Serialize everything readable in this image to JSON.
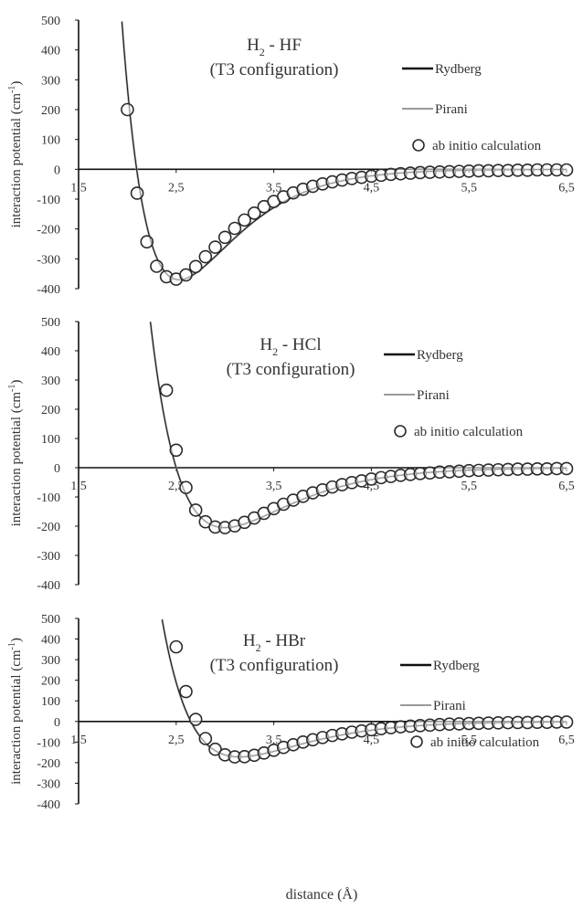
{
  "chart_data": [
    {
      "type": "line",
      "title_line1": "H",
      "title_sub": "2",
      "title_line1_rest": " - HF",
      "title_line2": "(T3 configuration)",
      "ylabel": "interaction potential (cm",
      "ylabel_sup": "-1",
      "ylabel_end": ")",
      "xlim": [
        1.5,
        6.5
      ],
      "ylim": [
        -400,
        500
      ],
      "xticks": [
        "1,5",
        "2,5",
        "3,5",
        "4,5",
        "5,5",
        "6,5"
      ],
      "yticks": [
        "500",
        "400",
        "300",
        "200",
        "100",
        "0",
        "-100",
        "-200",
        "-300",
        "-400"
      ],
      "legend": [
        "Rydberg",
        "Pirani",
        "ab initio calculation"
      ],
      "model": {
        "de": 370,
        "re": 2.53,
        "a": 2.3
      },
      "series": [
        {
          "name": "Rydberg",
          "style": "line"
        },
        {
          "name": "Pirani",
          "style": "line"
        },
        {
          "name": "ab initio calculation",
          "style": "markers",
          "points": [
            [
              2.0,
              200
            ],
            [
              2.1,
              -80
            ],
            [
              2.2,
              -243
            ],
            [
              2.3,
              -325
            ],
            [
              2.4,
              -360
            ],
            [
              2.5,
              -368
            ],
            [
              2.6,
              -354
            ],
            [
              2.7,
              -326
            ],
            [
              2.8,
              -293
            ],
            [
              2.9,
              -261
            ],
            [
              3.0,
              -228
            ],
            [
              3.1,
              -198
            ],
            [
              3.2,
              -170
            ],
            [
              3.3,
              -147
            ],
            [
              3.4,
              -125
            ],
            [
              3.5,
              -108
            ],
            [
              3.6,
              -92
            ],
            [
              3.7,
              -79
            ],
            [
              3.8,
              -67
            ],
            [
              3.9,
              -57
            ],
            [
              4.0,
              -49
            ],
            [
              4.1,
              -42
            ],
            [
              4.2,
              -36
            ],
            [
              4.3,
              -31
            ],
            [
              4.4,
              -27
            ],
            [
              4.5,
              -23
            ],
            [
              4.6,
              -20
            ],
            [
              4.7,
              -17
            ],
            [
              4.8,
              -15
            ],
            [
              4.9,
              -13
            ],
            [
              5.0,
              -11
            ],
            [
              5.1,
              -10
            ],
            [
              5.2,
              -9
            ],
            [
              5.3,
              -8
            ],
            [
              5.4,
              -7
            ],
            [
              5.5,
              -6
            ],
            [
              5.6,
              -5
            ],
            [
              5.7,
              -5
            ],
            [
              5.8,
              -4
            ],
            [
              5.9,
              -4
            ],
            [
              6.0,
              -3
            ],
            [
              6.1,
              -3
            ],
            [
              6.2,
              -2
            ],
            [
              6.3,
              -2
            ],
            [
              6.4,
              -2
            ],
            [
              6.5,
              -2
            ]
          ]
        }
      ]
    },
    {
      "type": "line",
      "title_line1": "H",
      "title_sub": "2",
      "title_line1_rest": " - HCl",
      "title_line2": "(T3 configuration)",
      "ylabel": "interaction potential (cm",
      "ylabel_sup": "-1",
      "ylabel_end": ")",
      "xlim": [
        1.5,
        6.5
      ],
      "ylim": [
        -400,
        500
      ],
      "xticks": [
        "1,5",
        "2,5",
        "3,5",
        "4,5",
        "5,5",
        "6,5"
      ],
      "yticks": [
        "500",
        "400",
        "300",
        "200",
        "100",
        "0",
        "-100",
        "-200",
        "-300",
        "-400"
      ],
      "legend": [
        "Rydberg",
        "Pirani",
        "ab initio calculation"
      ],
      "model": {
        "de": 205,
        "re": 3.0,
        "a": 2.0
      },
      "series": [
        {
          "name": "Rydberg",
          "style": "line"
        },
        {
          "name": "Pirani",
          "style": "line"
        },
        {
          "name": "ab initio calculation",
          "style": "markers",
          "points": [
            [
              2.4,
              265
            ],
            [
              2.5,
              60
            ],
            [
              2.6,
              -68
            ],
            [
              2.7,
              -145
            ],
            [
              2.8,
              -185
            ],
            [
              2.9,
              -203
            ],
            [
              3.0,
              -205
            ],
            [
              3.1,
              -199
            ],
            [
              3.2,
              -187
            ],
            [
              3.3,
              -172
            ],
            [
              3.4,
              -156
            ],
            [
              3.5,
              -140
            ],
            [
              3.6,
              -125
            ],
            [
              3.7,
              -111
            ],
            [
              3.8,
              -98
            ],
            [
              3.9,
              -86
            ],
            [
              4.0,
              -76
            ],
            [
              4.1,
              -66
            ],
            [
              4.2,
              -58
            ],
            [
              4.3,
              -51
            ],
            [
              4.4,
              -45
            ],
            [
              4.5,
              -39
            ],
            [
              4.6,
              -34
            ],
            [
              4.7,
              -30
            ],
            [
              4.8,
              -26
            ],
            [
              4.9,
              -23
            ],
            [
              5.0,
              -20
            ],
            [
              5.1,
              -18
            ],
            [
              5.2,
              -15
            ],
            [
              5.3,
              -14
            ],
            [
              5.4,
              -12
            ],
            [
              5.5,
              -10
            ],
            [
              5.6,
              -9
            ],
            [
              5.7,
              -8
            ],
            [
              5.8,
              -7
            ],
            [
              5.9,
              -6
            ],
            [
              6.0,
              -5
            ],
            [
              6.1,
              -5
            ],
            [
              6.2,
              -4
            ],
            [
              6.3,
              -4
            ],
            [
              6.4,
              -3
            ],
            [
              6.5,
              -3
            ]
          ]
        }
      ]
    },
    {
      "type": "line",
      "title_line1": "H",
      "title_sub": "2",
      "title_line1_rest": " - HBr",
      "title_line2": "(T3 configuration)",
      "ylabel": "interaction potential (cm",
      "ylabel_sup": "-1",
      "ylabel_end": ")",
      "xlabel": "distance (Å)",
      "xlim": [
        1.5,
        6.5
      ],
      "ylim": [
        -400,
        500
      ],
      "xticks": [
        "1,5",
        "2,5",
        "3,5",
        "4,5",
        "5,5",
        "6,5"
      ],
      "yticks": [
        "500",
        "400",
        "300",
        "200",
        "100",
        "0",
        "-100",
        "-200",
        "-300",
        "-400"
      ],
      "legend": [
        "Rydberg",
        "Pirani",
        "ab initio calculation"
      ],
      "model": {
        "de": 172,
        "re": 3.15,
        "a": 2.0
      },
      "series": [
        {
          "name": "Rydberg",
          "style": "line"
        },
        {
          "name": "Pirani",
          "style": "line"
        },
        {
          "name": "ab initio calculation",
          "style": "markers",
          "points": [
            [
              2.5,
              362
            ],
            [
              2.6,
              145
            ],
            [
              2.7,
              10
            ],
            [
              2.8,
              -83
            ],
            [
              2.9,
              -135
            ],
            [
              3.0,
              -162
            ],
            [
              3.1,
              -172
            ],
            [
              3.2,
              -171
            ],
            [
              3.3,
              -164
            ],
            [
              3.4,
              -153
            ],
            [
              3.5,
              -140
            ],
            [
              3.6,
              -126
            ],
            [
              3.7,
              -113
            ],
            [
              3.8,
              -100
            ],
            [
              3.9,
              -89
            ],
            [
              4.0,
              -78
            ],
            [
              4.1,
              -68
            ],
            [
              4.2,
              -60
            ],
            [
              4.3,
              -52
            ],
            [
              4.4,
              -46
            ],
            [
              4.5,
              -40
            ],
            [
              4.6,
              -35
            ],
            [
              4.7,
              -30
            ],
            [
              4.8,
              -26
            ],
            [
              4.9,
              -23
            ],
            [
              5.0,
              -20
            ],
            [
              5.1,
              -18
            ],
            [
              5.2,
              -15
            ],
            [
              5.3,
              -13
            ],
            [
              5.4,
              -12
            ],
            [
              5.5,
              -10
            ],
            [
              5.6,
              -9
            ],
            [
              5.7,
              -8
            ],
            [
              5.8,
              -7
            ],
            [
              5.9,
              -6
            ],
            [
              6.0,
              -5
            ],
            [
              6.1,
              -5
            ],
            [
              6.2,
              -4
            ],
            [
              6.3,
              -4
            ],
            [
              6.4,
              -3
            ],
            [
              6.5,
              -3
            ]
          ]
        }
      ]
    }
  ],
  "colors": {
    "rydberg": "#111111",
    "pirani": "#9a9a9a",
    "marker_edge": "#2a2a2a",
    "axis": "#111111",
    "text": "#333333"
  }
}
